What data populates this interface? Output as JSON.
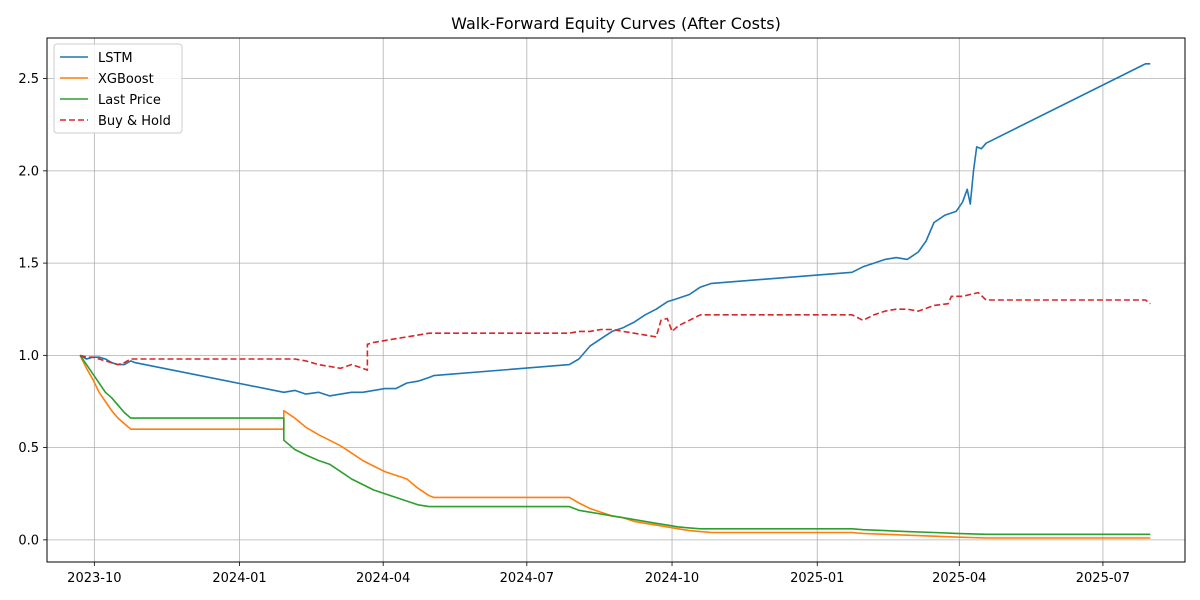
{
  "chart_data": {
    "type": "line",
    "title": "Walk-Forward Equity Curves (After Costs)",
    "xlabel": "",
    "ylabel": "",
    "x_axis": {
      "type": "date",
      "range": [
        "2023-09-01",
        "2025-08-22"
      ],
      "ticks": [
        {
          "date": "2023-10-01",
          "label": "2023-10"
        },
        {
          "date": "2024-01-01",
          "label": "2024-01"
        },
        {
          "date": "2024-04-01",
          "label": "2024-04"
        },
        {
          "date": "2024-07-01",
          "label": "2024-07"
        },
        {
          "date": "2024-10-01",
          "label": "2024-10"
        },
        {
          "date": "2025-01-01",
          "label": "2025-01"
        },
        {
          "date": "2025-04-01",
          "label": "2025-04"
        },
        {
          "date": "2025-07-01",
          "label": "2025-07"
        }
      ]
    },
    "ylim": [
      -0.12,
      2.72
    ],
    "yticks": [
      {
        "value": 0.0,
        "label": "0.0"
      },
      {
        "value": 0.5,
        "label": "0.5"
      },
      {
        "value": 1.0,
        "label": "1.0"
      },
      {
        "value": 1.5,
        "label": "1.5"
      },
      {
        "value": 2.0,
        "label": "2.0"
      },
      {
        "value": 2.5,
        "label": "2.5"
      }
    ],
    "grid": true,
    "legend_position": "upper-left",
    "series": [
      {
        "name": "LSTM",
        "color": "#1f77b4",
        "dash": "solid",
        "points": [
          [
            "2023-09-22",
            1.0
          ],
          [
            "2023-09-26",
            0.98
          ],
          [
            "2023-09-30",
            0.99
          ],
          [
            "2023-10-04",
            0.99
          ],
          [
            "2023-10-08",
            0.98
          ],
          [
            "2023-10-12",
            0.96
          ],
          [
            "2023-10-16",
            0.95
          ],
          [
            "2023-10-20",
            0.95
          ],
          [
            "2023-10-24",
            0.97
          ],
          [
            "2023-10-27",
            0.96
          ],
          [
            "2024-01-29",
            0.8
          ],
          [
            "2024-02-05",
            0.81
          ],
          [
            "2024-02-12",
            0.79
          ],
          [
            "2024-02-20",
            0.8
          ],
          [
            "2024-02-27",
            0.78
          ],
          [
            "2024-03-05",
            0.79
          ],
          [
            "2024-03-12",
            0.8
          ],
          [
            "2024-03-19",
            0.8
          ],
          [
            "2024-03-26",
            0.81
          ],
          [
            "2024-04-02",
            0.82
          ],
          [
            "2024-04-09",
            0.82
          ],
          [
            "2024-04-16",
            0.85
          ],
          [
            "2024-04-23",
            0.86
          ],
          [
            "2024-04-30",
            0.88
          ],
          [
            "2024-05-03",
            0.89
          ],
          [
            "2024-07-28",
            0.95
          ],
          [
            "2024-08-03",
            0.98
          ],
          [
            "2024-08-10",
            1.05
          ],
          [
            "2024-08-17",
            1.09
          ],
          [
            "2024-08-24",
            1.13
          ],
          [
            "2024-08-31",
            1.15
          ],
          [
            "2024-09-07",
            1.18
          ],
          [
            "2024-09-14",
            1.22
          ],
          [
            "2024-09-21",
            1.25
          ],
          [
            "2024-09-28",
            1.29
          ],
          [
            "2024-10-05",
            1.31
          ],
          [
            "2024-10-12",
            1.33
          ],
          [
            "2024-10-19",
            1.37
          ],
          [
            "2024-10-26",
            1.39
          ],
          [
            "2025-01-23",
            1.45
          ],
          [
            "2025-01-30",
            1.48
          ],
          [
            "2025-02-06",
            1.5
          ],
          [
            "2025-02-13",
            1.52
          ],
          [
            "2025-02-20",
            1.53
          ],
          [
            "2025-02-27",
            1.52
          ],
          [
            "2025-03-06",
            1.56
          ],
          [
            "2025-03-11",
            1.62
          ],
          [
            "2025-03-16",
            1.72
          ],
          [
            "2025-03-23",
            1.76
          ],
          [
            "2025-03-30",
            1.78
          ],
          [
            "2025-04-03",
            1.83
          ],
          [
            "2025-04-06",
            1.9
          ],
          [
            "2025-04-08",
            1.82
          ],
          [
            "2025-04-10",
            2.0
          ],
          [
            "2025-04-12",
            2.13
          ],
          [
            "2025-04-15",
            2.12
          ],
          [
            "2025-04-18",
            2.15
          ],
          [
            "2025-07-28",
            2.58
          ],
          [
            "2025-07-31",
            2.58
          ]
        ]
      },
      {
        "name": "XGBoost",
        "color": "#ff7f0e",
        "dash": "solid",
        "points": [
          [
            "2023-09-22",
            1.0
          ],
          [
            "2023-09-26",
            0.93
          ],
          [
            "2023-09-30",
            0.87
          ],
          [
            "2023-10-04",
            0.8
          ],
          [
            "2023-10-08",
            0.75
          ],
          [
            "2023-10-12",
            0.7
          ],
          [
            "2023-10-16",
            0.66
          ],
          [
            "2023-10-20",
            0.63
          ],
          [
            "2023-10-24",
            0.6
          ],
          [
            "2023-10-27",
            0.6
          ],
          [
            "2024-01-29",
            0.6
          ],
          [
            "2024-01-29",
            0.7
          ],
          [
            "2024-02-05",
            0.66
          ],
          [
            "2024-02-12",
            0.61
          ],
          [
            "2024-02-20",
            0.57
          ],
          [
            "2024-02-27",
            0.54
          ],
          [
            "2024-03-05",
            0.51
          ],
          [
            "2024-03-12",
            0.47
          ],
          [
            "2024-03-19",
            0.43
          ],
          [
            "2024-03-26",
            0.4
          ],
          [
            "2024-04-02",
            0.37
          ],
          [
            "2024-04-09",
            0.35
          ],
          [
            "2024-04-16",
            0.33
          ],
          [
            "2024-04-23",
            0.28
          ],
          [
            "2024-04-30",
            0.24
          ],
          [
            "2024-05-03",
            0.23
          ],
          [
            "2024-07-28",
            0.23
          ],
          [
            "2024-08-03",
            0.2
          ],
          [
            "2024-08-10",
            0.17
          ],
          [
            "2024-08-17",
            0.15
          ],
          [
            "2024-08-24",
            0.13
          ],
          [
            "2024-08-31",
            0.12
          ],
          [
            "2024-09-07",
            0.1
          ],
          [
            "2024-09-14",
            0.09
          ],
          [
            "2024-09-21",
            0.08
          ],
          [
            "2024-09-28",
            0.07
          ],
          [
            "2024-10-05",
            0.06
          ],
          [
            "2024-10-12",
            0.05
          ],
          [
            "2024-10-19",
            0.045
          ],
          [
            "2024-10-26",
            0.04
          ],
          [
            "2025-01-23",
            0.04
          ],
          [
            "2025-01-30",
            0.035
          ],
          [
            "2025-02-13",
            0.03
          ],
          [
            "2025-02-27",
            0.025
          ],
          [
            "2025-03-16",
            0.02
          ],
          [
            "2025-03-30",
            0.015
          ],
          [
            "2025-04-18",
            0.01
          ],
          [
            "2025-07-28",
            0.01
          ],
          [
            "2025-07-31",
            0.01
          ]
        ]
      },
      {
        "name": "Last Price",
        "color": "#2ca02c",
        "dash": "solid",
        "points": [
          [
            "2023-09-22",
            1.0
          ],
          [
            "2023-09-26",
            0.95
          ],
          [
            "2023-09-30",
            0.9
          ],
          [
            "2023-10-04",
            0.85
          ],
          [
            "2023-10-08",
            0.8
          ],
          [
            "2023-10-12",
            0.77
          ],
          [
            "2023-10-16",
            0.73
          ],
          [
            "2023-10-20",
            0.69
          ],
          [
            "2023-10-24",
            0.66
          ],
          [
            "2023-10-27",
            0.66
          ],
          [
            "2024-01-29",
            0.66
          ],
          [
            "2024-01-29",
            0.54
          ],
          [
            "2024-02-05",
            0.49
          ],
          [
            "2024-02-12",
            0.46
          ],
          [
            "2024-02-20",
            0.43
          ],
          [
            "2024-02-27",
            0.41
          ],
          [
            "2024-03-05",
            0.37
          ],
          [
            "2024-03-12",
            0.33
          ],
          [
            "2024-03-19",
            0.3
          ],
          [
            "2024-03-26",
            0.27
          ],
          [
            "2024-04-02",
            0.25
          ],
          [
            "2024-04-09",
            0.23
          ],
          [
            "2024-04-16",
            0.21
          ],
          [
            "2024-04-23",
            0.19
          ],
          [
            "2024-04-30",
            0.18
          ],
          [
            "2024-05-03",
            0.18
          ],
          [
            "2024-07-28",
            0.18
          ],
          [
            "2024-08-03",
            0.16
          ],
          [
            "2024-08-10",
            0.15
          ],
          [
            "2024-08-17",
            0.14
          ],
          [
            "2024-08-24",
            0.13
          ],
          [
            "2024-08-31",
            0.12
          ],
          [
            "2024-09-07",
            0.11
          ],
          [
            "2024-09-14",
            0.1
          ],
          [
            "2024-09-21",
            0.09
          ],
          [
            "2024-09-28",
            0.08
          ],
          [
            "2024-10-05",
            0.07
          ],
          [
            "2024-10-12",
            0.065
          ],
          [
            "2024-10-19",
            0.06
          ],
          [
            "2024-10-26",
            0.06
          ],
          [
            "2025-01-23",
            0.06
          ],
          [
            "2025-01-30",
            0.055
          ],
          [
            "2025-02-13",
            0.05
          ],
          [
            "2025-02-27",
            0.045
          ],
          [
            "2025-03-16",
            0.04
          ],
          [
            "2025-03-30",
            0.035
          ],
          [
            "2025-04-18",
            0.03
          ],
          [
            "2025-07-28",
            0.03
          ],
          [
            "2025-07-31",
            0.03
          ]
        ]
      },
      {
        "name": "Buy & Hold",
        "color": "#d62728",
        "dash": "dashed",
        "points": [
          [
            "2023-09-22",
            1.0
          ],
          [
            "2023-09-26",
            0.99
          ],
          [
            "2023-09-30",
            0.99
          ],
          [
            "2023-10-04",
            0.98
          ],
          [
            "2023-10-08",
            0.97
          ],
          [
            "2023-10-12",
            0.96
          ],
          [
            "2023-10-16",
            0.95
          ],
          [
            "2023-10-20",
            0.96
          ],
          [
            "2023-10-24",
            0.98
          ],
          [
            "2023-10-27",
            0.98
          ],
          [
            "2024-01-29",
            0.98
          ],
          [
            "2024-02-05",
            0.98
          ],
          [
            "2024-02-12",
            0.97
          ],
          [
            "2024-02-20",
            0.95
          ],
          [
            "2024-02-27",
            0.94
          ],
          [
            "2024-03-05",
            0.93
          ],
          [
            "2024-03-12",
            0.95
          ],
          [
            "2024-03-19",
            0.93
          ],
          [
            "2024-03-22",
            0.92
          ],
          [
            "2024-03-22",
            1.06
          ],
          [
            "2024-03-26",
            1.07
          ],
          [
            "2024-04-02",
            1.08
          ],
          [
            "2024-04-09",
            1.09
          ],
          [
            "2024-04-16",
            1.1
          ],
          [
            "2024-04-23",
            1.11
          ],
          [
            "2024-04-30",
            1.12
          ],
          [
            "2024-05-03",
            1.12
          ],
          [
            "2024-07-28",
            1.12
          ],
          [
            "2024-08-03",
            1.13
          ],
          [
            "2024-08-10",
            1.13
          ],
          [
            "2024-08-17",
            1.14
          ],
          [
            "2024-08-24",
            1.14
          ],
          [
            "2024-08-31",
            1.13
          ],
          [
            "2024-09-07",
            1.12
          ],
          [
            "2024-09-14",
            1.11
          ],
          [
            "2024-09-21",
            1.1
          ],
          [
            "2024-09-24",
            1.19
          ],
          [
            "2024-09-28",
            1.2
          ],
          [
            "2024-10-01",
            1.13
          ],
          [
            "2024-10-05",
            1.16
          ],
          [
            "2024-10-12",
            1.19
          ],
          [
            "2024-10-19",
            1.22
          ],
          [
            "2024-10-26",
            1.22
          ],
          [
            "2025-01-23",
            1.22
          ],
          [
            "2025-01-30",
            1.19
          ],
          [
            "2025-02-06",
            1.22
          ],
          [
            "2025-02-13",
            1.24
          ],
          [
            "2025-02-20",
            1.25
          ],
          [
            "2025-02-27",
            1.25
          ],
          [
            "2025-03-06",
            1.24
          ],
          [
            "2025-03-16",
            1.27
          ],
          [
            "2025-03-25",
            1.28
          ],
          [
            "2025-03-27",
            1.32
          ],
          [
            "2025-04-03",
            1.32
          ],
          [
            "2025-04-08",
            1.33
          ],
          [
            "2025-04-13",
            1.34
          ],
          [
            "2025-04-18",
            1.3
          ],
          [
            "2025-07-28",
            1.3
          ],
          [
            "2025-07-31",
            1.28
          ]
        ]
      }
    ]
  }
}
